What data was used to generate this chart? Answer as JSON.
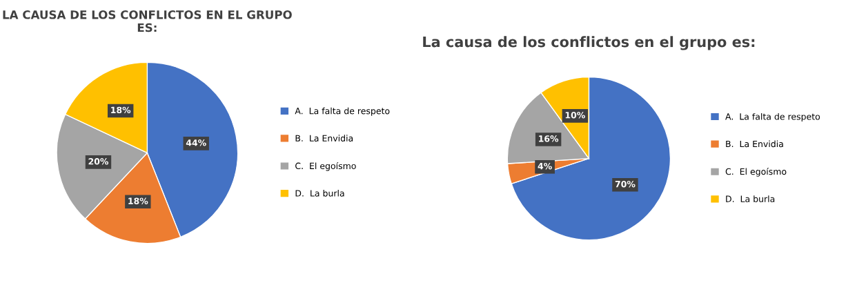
{
  "chart_data": [
    {
      "type": "pie",
      "title": "LA CAUSA DE LOS CONFLICTOS EN EL GRUPO ES:",
      "categories": [
        "A.  La falta de respeto",
        "B.  La Envidia",
        "C.  El egoísmo",
        "D.  La burla"
      ],
      "values": [
        44,
        18,
        20,
        18
      ],
      "value_labels": [
        "44%",
        "18%",
        "20%",
        "18%"
      ],
      "colors": [
        "#4472c4",
        "#ed7d31",
        "#a5a5a5",
        "#ffc000"
      ],
      "legend": "right"
    },
    {
      "type": "pie",
      "title": "La causa de los conflictos en el grupo es:",
      "categories": [
        "A.  La falta de respeto",
        "B.  La Envidia",
        "C.  El egoísmo",
        "D.  La burla"
      ],
      "values": [
        70,
        4,
        16,
        10
      ],
      "value_labels": [
        "70%",
        "4%",
        "16%",
        "10%"
      ],
      "colors": [
        "#4472c4",
        "#ed7d31",
        "#a5a5a5",
        "#ffc000"
      ],
      "legend": "right"
    }
  ]
}
